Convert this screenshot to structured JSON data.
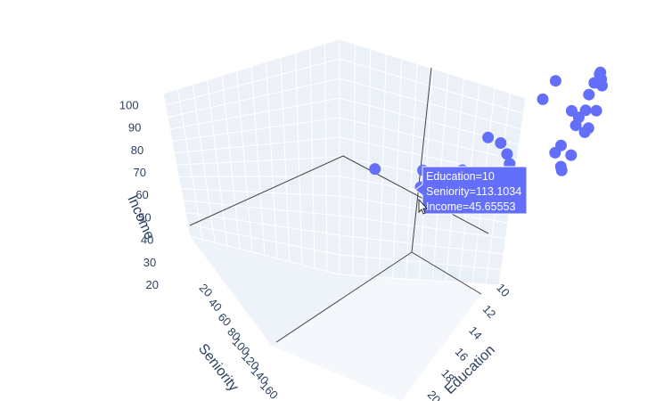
{
  "chart_data": {
    "type": "scatter",
    "marker_color": "#636efa",
    "axes": {
      "z": {
        "label": "Income",
        "ticks": [
          "20",
          "30",
          "40",
          "50",
          "60",
          "70",
          "80",
          "90",
          "100"
        ]
      },
      "y": {
        "label": "Seniority",
        "ticks": [
          "20",
          "40",
          "60",
          "80",
          "100",
          "120",
          "140",
          "160"
        ]
      },
      "x": {
        "label": "Education",
        "ticks": [
          "10",
          "12",
          "14",
          "16",
          "18",
          "20"
        ]
      }
    },
    "scene_background": "#e5ecf6",
    "hover": {
      "lines": [
        "Education=10",
        "Seniority=113.1034",
        "Income=45.65553"
      ],
      "point": {
        "education": 10,
        "seniority": 113.1034,
        "income": 45.65553
      }
    },
    "points": [
      {
        "education": 12.6,
        "seniority": 21,
        "income": 77
      },
      {
        "education": 13.0,
        "seniority": 30,
        "income": 74
      },
      {
        "education": 13.2,
        "seniority": 35,
        "income": 69
      },
      {
        "education": 13.6,
        "seniority": 30,
        "income": 82
      },
      {
        "education": 13.8,
        "seniority": 32,
        "income": 83
      },
      {
        "education": 14.0,
        "seniority": 34,
        "income": 81
      },
      {
        "education": 14.2,
        "seniority": 36,
        "income": 79
      },
      {
        "education": 14.5,
        "seniority": 44,
        "income": 71
      },
      {
        "education": 13.3,
        "seniority": 58,
        "income": 82
      },
      {
        "education": 14.2,
        "seniority": 58,
        "income": 72
      },
      {
        "education": 14.6,
        "seniority": 58,
        "income": 70
      },
      {
        "education": 14.9,
        "seniority": 64,
        "income": 68
      },
      {
        "education": 15.3,
        "seniority": 60,
        "income": 67
      },
      {
        "education": 15.4,
        "seniority": 64,
        "income": 66
      },
      {
        "education": 15.1,
        "seniority": 70,
        "income": 58
      },
      {
        "education": 15.3,
        "seniority": 80,
        "income": 55
      },
      {
        "education": 15.5,
        "seniority": 82,
        "income": 54
      },
      {
        "education": 15.0,
        "seniority": 76,
        "income": 62
      },
      {
        "education": 14.2,
        "seniority": 70,
        "income": 58
      },
      {
        "education": 13.2,
        "seniority": 66,
        "income": 76
      },
      {
        "education": 12.7,
        "seniority": 90,
        "income": 62
      },
      {
        "education": 12.9,
        "seniority": 88,
        "income": 58
      },
      {
        "education": 13.2,
        "seniority": 90,
        "income": 55
      },
      {
        "education": 12.3,
        "seniority": 94,
        "income": 64
      },
      {
        "education": 11.4,
        "seniority": 101,
        "income": 52
      },
      {
        "education": 11.2,
        "seniority": 105,
        "income": 51
      },
      {
        "education": 10.7,
        "seniority": 110,
        "income": 51
      },
      {
        "education": 10.2,
        "seniority": 114,
        "income": 52
      },
      {
        "education": 10.0,
        "seniority": 113.1034,
        "income": 45.65553
      },
      {
        "education": 8.9,
        "seniority": 132,
        "income": 53
      }
    ]
  }
}
